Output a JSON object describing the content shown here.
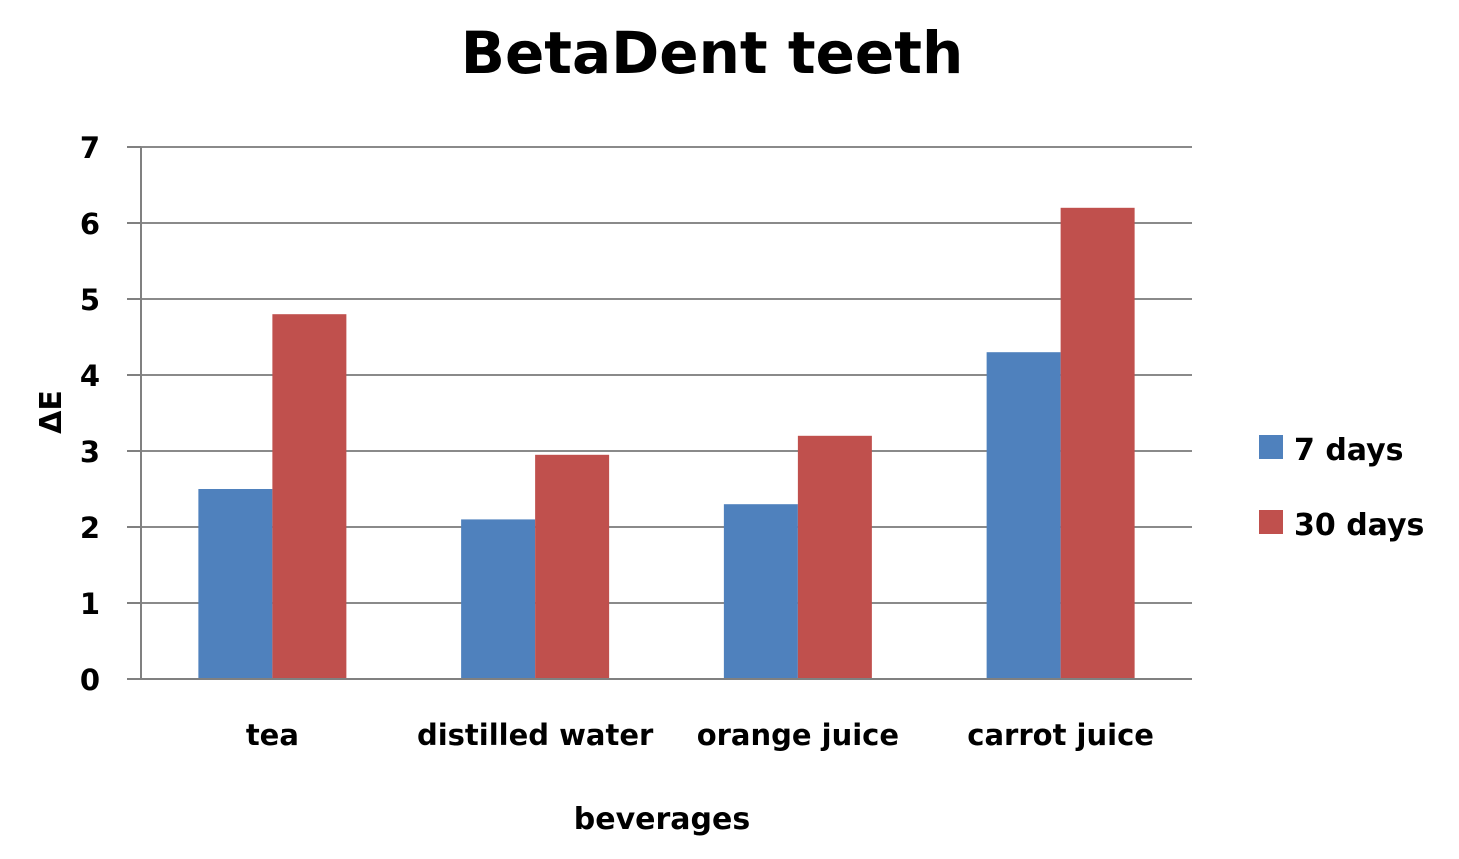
{
  "chart_data": {
    "type": "bar",
    "title": "BetaDent teeth",
    "xlabel": "beverages",
    "ylabel": "ΔE",
    "categories": [
      "tea",
      "distilled water",
      "orange juice",
      "carrot juice"
    ],
    "series": [
      {
        "name": "7 days",
        "color": "#4F81BD",
        "values": [
          2.5,
          2.1,
          2.3,
          4.3
        ]
      },
      {
        "name": "30 days",
        "color": "#C0504D",
        "values": [
          4.8,
          2.95,
          3.2,
          6.2
        ]
      }
    ],
    "ylim": [
      0,
      7
    ],
    "yticks": [
      "0",
      "1",
      "2",
      "3",
      "4",
      "5",
      "6",
      "7"
    ],
    "grid": true,
    "legend_position": "right"
  }
}
